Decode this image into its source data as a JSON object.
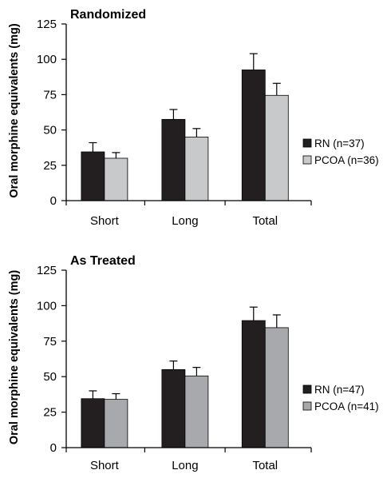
{
  "chart_data": [
    {
      "type": "bar",
      "title": "Randomized",
      "ylabel": "Oral morphine equivalents (mg)",
      "xlabel": "",
      "categories": [
        "Short",
        "Long",
        "Total"
      ],
      "ylim": [
        0,
        125
      ],
      "yticks": [
        0,
        25,
        50,
        75,
        100,
        125
      ],
      "grid": false,
      "legend_position": "right",
      "series": [
        {
          "name": "RN (n=37)",
          "values": [
            34.5,
            57.5,
            92.5
          ],
          "errors": [
            6.5,
            7.0,
            11.5
          ],
          "color": "#231f20"
        },
        {
          "name": "PCOA (n=36)",
          "values": [
            30.0,
            45.0,
            74.5
          ],
          "errors": [
            4.0,
            6.0,
            8.5
          ],
          "color": "#c8c9cb"
        }
      ]
    },
    {
      "type": "bar",
      "title": "As Treated",
      "ylabel": "Oral morphine equivalents (mg)",
      "xlabel": "",
      "categories": [
        "Short",
        "Long",
        "Total"
      ],
      "ylim": [
        0,
        125
      ],
      "yticks": [
        0,
        25,
        50,
        75,
        100,
        125
      ],
      "grid": false,
      "legend_position": "right",
      "series": [
        {
          "name": "RN (n=47)",
          "values": [
            34.5,
            55.0,
            89.5
          ],
          "errors": [
            5.5,
            6.0,
            9.5
          ],
          "color": "#231f20"
        },
        {
          "name": "PCOA (n=41)",
          "values": [
            34.0,
            50.5,
            84.5
          ],
          "errors": [
            4.0,
            6.0,
            9.0
          ],
          "color": "#a7a9ac"
        }
      ]
    }
  ]
}
